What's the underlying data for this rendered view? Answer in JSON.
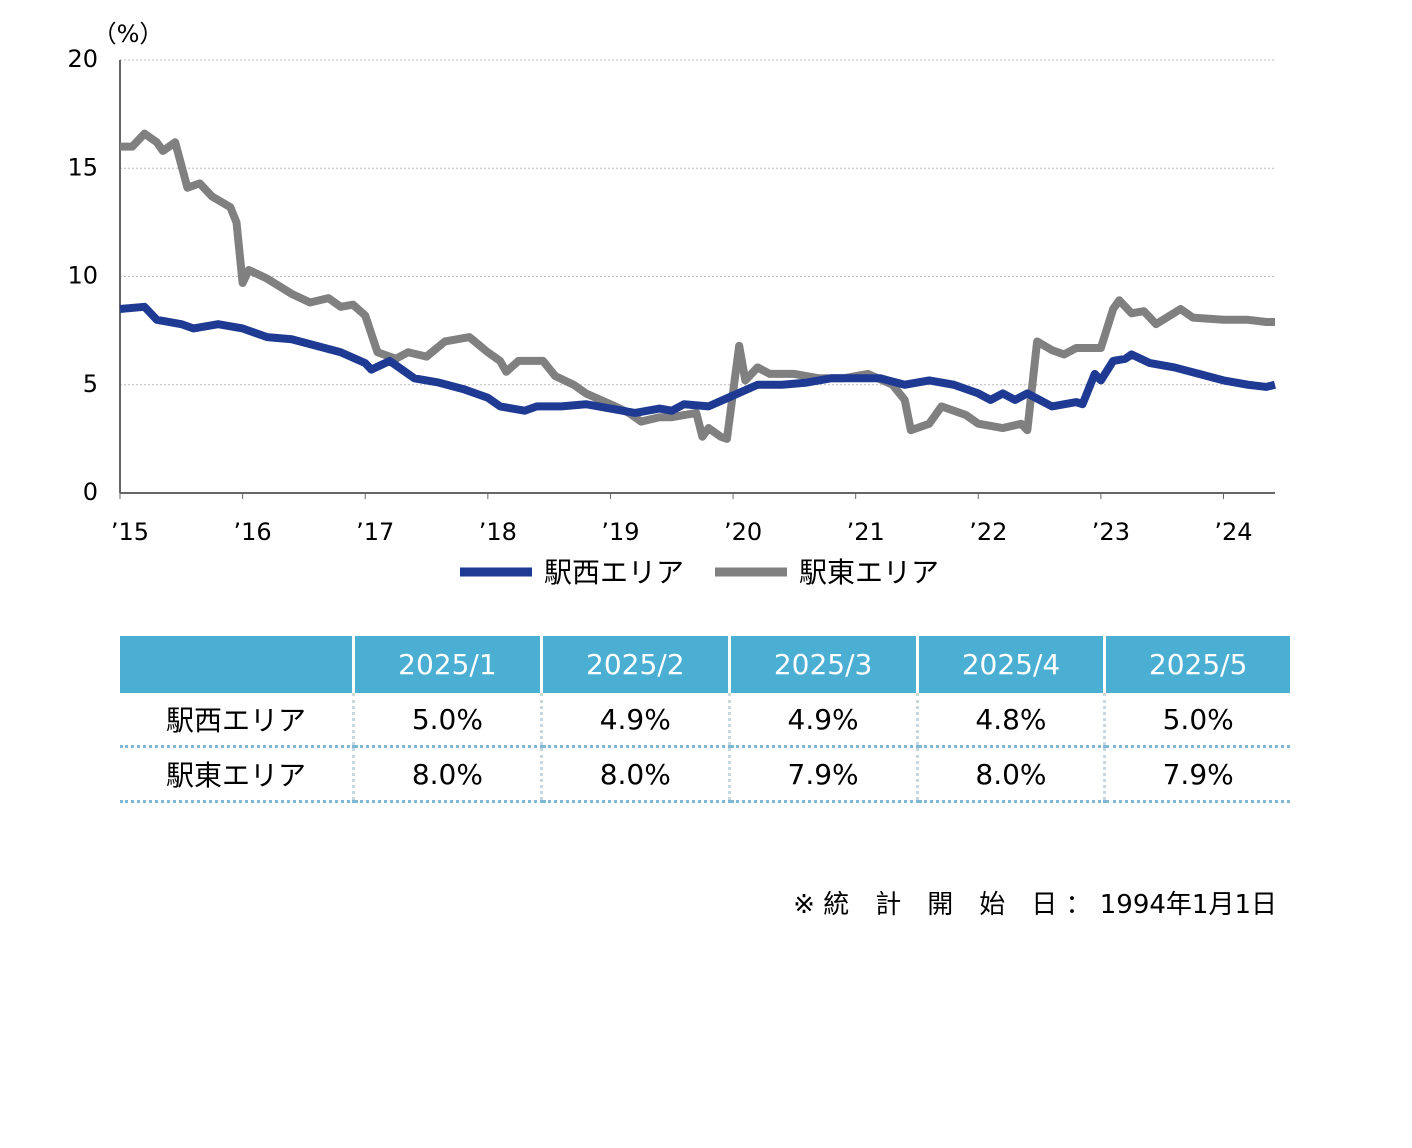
{
  "chart_data": {
    "type": "line",
    "y_unit": "（%）",
    "xlim": [
      2015,
      2024.42
    ],
    "xticks": [
      {
        "value": 2015,
        "label": "’15"
      },
      {
        "value": 2016,
        "label": "’16"
      },
      {
        "value": 2017,
        "label": "’17"
      },
      {
        "value": 2018,
        "label": "’18"
      },
      {
        "value": 2019,
        "label": "’19"
      },
      {
        "value": 2020,
        "label": "’20"
      },
      {
        "value": 2021,
        "label": "’21"
      },
      {
        "value": 2022,
        "label": "’22"
      },
      {
        "value": 2023,
        "label": "’23"
      },
      {
        "value": 2024,
        "label": "’24"
      }
    ],
    "ylim": [
      0,
      20
    ],
    "yticks": [
      0,
      5,
      10,
      15,
      20
    ],
    "grid": true,
    "series": [
      {
        "name": "駅西エリア",
        "color": "#1f3a93",
        "x": [
          2015,
          2015.2,
          2015.3,
          2015.5,
          2015.6,
          2015.8,
          2016,
          2016.2,
          2016.4,
          2016.6,
          2016.8,
          2017,
          2017.05,
          2017.2,
          2017.4,
          2017.6,
          2017.8,
          2018,
          2018.1,
          2018.3,
          2018.4,
          2018.6,
          2018.8,
          2019,
          2019.2,
          2019.4,
          2019.5,
          2019.6,
          2019.8,
          2020,
          2020.2,
          2020.4,
          2020.6,
          2020.8,
          2021,
          2021.2,
          2021.4,
          2021.6,
          2021.8,
          2022,
          2022.1,
          2022.2,
          2022.3,
          2022.4,
          2022.6,
          2022.8,
          2022.85,
          2022.95,
          2023,
          2023.1,
          2023.2,
          2023.25,
          2023.4,
          2023.6,
          2023.8,
          2024,
          2024.2,
          2024.35,
          2024.42
        ],
        "values": [
          8.5,
          8.6,
          8.0,
          7.8,
          7.6,
          7.8,
          7.6,
          7.2,
          7.1,
          6.8,
          6.5,
          6.0,
          5.7,
          6.1,
          5.3,
          5.1,
          4.8,
          4.4,
          4.0,
          3.8,
          4.0,
          4.0,
          4.1,
          3.9,
          3.7,
          3.9,
          3.8,
          4.1,
          4.0,
          4.5,
          5.0,
          5.0,
          5.1,
          5.3,
          5.3,
          5.3,
          5.0,
          5.2,
          5.0,
          4.6,
          4.3,
          4.6,
          4.3,
          4.6,
          4.0,
          4.2,
          4.1,
          5.5,
          5.2,
          6.1,
          6.2,
          6.4,
          6.0,
          5.8,
          5.5,
          5.2,
          5.0,
          4.9,
          5.0
        ]
      },
      {
        "name": "駅東エリア",
        "color": "#808080",
        "x": [
          2015,
          2015.1,
          2015.2,
          2015.3,
          2015.35,
          2015.45,
          2015.55,
          2015.65,
          2015.75,
          2015.9,
          2015.95,
          2016,
          2016.05,
          2016.2,
          2016.4,
          2016.55,
          2016.7,
          2016.8,
          2016.9,
          2017,
          2017.1,
          2017.25,
          2017.35,
          2017.5,
          2017.65,
          2017.85,
          2018,
          2018.1,
          2018.15,
          2018.25,
          2018.45,
          2018.55,
          2018.7,
          2018.8,
          2019,
          2019.15,
          2019.25,
          2019.4,
          2019.5,
          2019.6,
          2019.7,
          2019.75,
          2019.8,
          2019.9,
          2019.95,
          2020.05,
          2020.1,
          2020.2,
          2020.3,
          2020.5,
          2020.7,
          2020.9,
          2021.1,
          2021.3,
          2021.4,
          2021.45,
          2021.6,
          2021.7,
          2021.9,
          2022,
          2022.2,
          2022.35,
          2022.4,
          2022.48,
          2022.6,
          2022.7,
          2022.8,
          2023,
          2023.1,
          2023.15,
          2023.25,
          2023.35,
          2023.45,
          2023.65,
          2023.75,
          2024,
          2024.2,
          2024.35,
          2024.42
        ],
        "values": [
          16.0,
          16.0,
          16.6,
          16.2,
          15.8,
          16.2,
          14.1,
          14.3,
          13.7,
          13.2,
          12.5,
          9.7,
          10.3,
          9.9,
          9.2,
          8.8,
          9.0,
          8.6,
          8.7,
          8.2,
          6.5,
          6.2,
          6.5,
          6.3,
          7.0,
          7.2,
          6.5,
          6.1,
          5.6,
          6.1,
          6.1,
          5.4,
          5.0,
          4.6,
          4.1,
          3.7,
          3.3,
          3.5,
          3.5,
          3.6,
          3.7,
          2.6,
          3.0,
          2.6,
          2.5,
          6.8,
          5.2,
          5.8,
          5.5,
          5.5,
          5.3,
          5.3,
          5.5,
          5.0,
          4.3,
          2.9,
          3.2,
          4.0,
          3.6,
          3.2,
          3.0,
          3.2,
          2.9,
          7.0,
          6.6,
          6.4,
          6.7,
          6.7,
          8.5,
          8.9,
          8.3,
          8.4,
          7.8,
          8.5,
          8.1,
          8.0,
          8.0,
          7.9,
          7.9
        ]
      }
    ]
  },
  "table": {
    "header": [
      "",
      "2025/1",
      "2025/2",
      "2025/3",
      "2025/4",
      "2025/5"
    ],
    "rows": [
      [
        "駅西エリア",
        "5.0%",
        "4.9%",
        "4.9%",
        "4.8%",
        "5.0%"
      ],
      [
        "駅東エリア",
        "8.0%",
        "8.0%",
        "7.9%",
        "8.0%",
        "7.9%"
      ]
    ]
  },
  "note": "※ 統　計　開　始　日 ： 1994年1月1日"
}
